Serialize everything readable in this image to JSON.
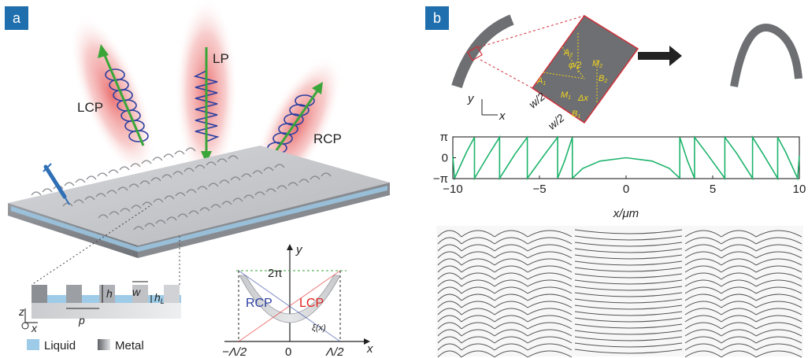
{
  "panel_a": {
    "tag": "a",
    "beams": {
      "lcp": "LCP",
      "lp": "LP",
      "rcp": "RCP"
    },
    "cross_section": {
      "z": "z",
      "x": "x",
      "h": "h",
      "w": "w",
      "hL": "h",
      "hL_sub": "L",
      "p": "p"
    },
    "legend": {
      "liquid": "Liquid",
      "metal": "Metal"
    },
    "colors": {
      "liquid": "#9dcbe8",
      "beam": "#e8595a",
      "arrow": "#3aa63a",
      "helix": "#2b3fa0"
    },
    "phase_inset": {
      "y_axis": "y",
      "x_axis": "x",
      "y_tick": "2π",
      "x_ticks": [
        "−Λ/2",
        "0",
        "Λ/2"
      ],
      "rcp": "RCP",
      "lcp": "LCP",
      "xi": "ξ(x)",
      "colors": {
        "rcp": "#2b3fa0",
        "lcp": "#e02020"
      }
    }
  },
  "panel_b": {
    "tag": "b",
    "zoom_labels": {
      "a1": "A",
      "a1_sub": "1",
      "a2": "A",
      "a2_sub": "2",
      "m1": "M",
      "m1_sub": "1",
      "m2": "M",
      "m2_sub": "2",
      "b1": "B",
      "b1_sub": "1",
      "b2": "B",
      "b2_sub": "2",
      "phi": "φ/2",
      "dx": "Δx",
      "w2a": "w/2",
      "w2b": "w/2"
    },
    "axes_icon": {
      "y": "y",
      "x": "x"
    },
    "colors": {
      "curve": "#1db36b",
      "zoom_border": "#d0303a",
      "zoom_labels": "#f3d61b"
    },
    "chart_data": {
      "type": "line",
      "xlabel": "x/μm",
      "xlim": [
        -10,
        10
      ],
      "ylim": [
        -3.1416,
        3.1416
      ],
      "x_ticks": [
        "−10",
        "−5",
        "0",
        "5",
        "10"
      ],
      "y_ticks": [
        "π",
        "0",
        "−π"
      ],
      "series": [
        {
          "x": [
            -10,
            -9.9,
            -9.2,
            -8.75,
            -8.75,
            -7.9,
            -7.3,
            -7.3,
            -6.4,
            -5.7,
            -5.7,
            -4.7,
            -3.95,
            -3.95,
            -3.55,
            -3.1,
            -3.1
          ],
          "y": [
            0.3,
            -3.1,
            0.9,
            3.1,
            -3.1,
            0.6,
            3.1,
            -3.1,
            0.6,
            3.1,
            -3.1,
            0.5,
            3.1,
            -3.1,
            -0.5,
            3.1,
            -3.1
          ]
        },
        {
          "x": [
            -3.1,
            -2.5,
            -1.5,
            0,
            1.5,
            2.5,
            3.1
          ],
          "y": [
            -3.1,
            -1.6,
            -0.5,
            0,
            -0.5,
            -1.6,
            -3.1
          ]
        },
        {
          "x": [
            3.1,
            3.1,
            3.55,
            3.95,
            3.95,
            4.7,
            5.7,
            5.7,
            6.4,
            7.3,
            7.3,
            7.9,
            8.75,
            8.75,
            9.2,
            9.9,
            10
          ],
          "y": [
            -3.1,
            3.1,
            -0.5,
            -3.1,
            3.1,
            0.5,
            -3.1,
            3.1,
            0.6,
            -3.1,
            3.1,
            0.6,
            -3.1,
            3.1,
            0.9,
            -3.1,
            0.3
          ]
        }
      ]
    }
  }
}
